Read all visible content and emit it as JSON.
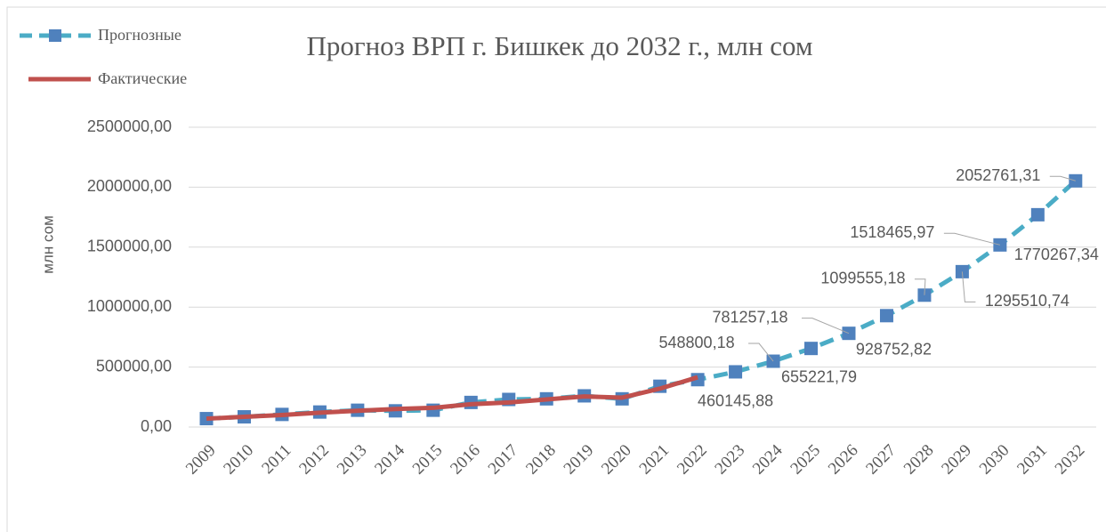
{
  "chart_data": {
    "type": "line",
    "title": "Прогноз ВРП г. Бишкек до 2032 г., млн сом",
    "y_label": "млн сом",
    "categories": [
      "2009",
      "2010",
      "2011",
      "2012",
      "2013",
      "2014",
      "2015",
      "2016",
      "2017",
      "2018",
      "2019",
      "2020",
      "2021",
      "2022",
      "2023",
      "2024",
      "2025",
      "2026",
      "2027",
      "2028",
      "2029",
      "2030",
      "2031",
      "2032"
    ],
    "series": [
      {
        "name": "Прогнозные",
        "color": "#4bacc6",
        "marker_color": "#4f81bd",
        "dashed": true,
        "values": [
          70000,
          85000,
          105000,
          125000,
          140000,
          135000,
          140000,
          205000,
          230000,
          235000,
          260000,
          235000,
          340000,
          395000,
          460145.88,
          548800.18,
          655221.79,
          781257.18,
          928752.82,
          1099555.18,
          1295510.74,
          1518465.97,
          1770267.34,
          2052761.31
        ],
        "value_labels": [
          null,
          null,
          null,
          null,
          null,
          null,
          null,
          null,
          null,
          null,
          null,
          null,
          null,
          null,
          "460145,88",
          "548800,18",
          "655221,79",
          "781257,18",
          "928752,82",
          "1099555,18",
          "1295510,74",
          "1518465,97",
          "1770267,34",
          "2052761,31"
        ]
      },
      {
        "name": "Фактические",
        "color": "#c0504d",
        "dashed": false,
        "values": [
          70000,
          85000,
          100000,
          120000,
          135000,
          150000,
          160000,
          190000,
          205000,
          230000,
          255000,
          245000,
          320000,
          415000,
          null,
          null,
          null,
          null,
          null,
          null,
          null,
          null,
          null,
          null
        ]
      }
    ],
    "ylim": [
      0,
      2500000
    ],
    "yticks": [
      {
        "value": 0,
        "label": "0,00"
      },
      {
        "value": 500000,
        "label": "500000,00"
      },
      {
        "value": 1000000,
        "label": "1000000,00"
      },
      {
        "value": 1500000,
        "label": "1500000,00"
      },
      {
        "value": 2000000,
        "label": "2000000,00"
      },
      {
        "value": 2500000,
        "label": "2500000,00"
      }
    ],
    "grid": true,
    "legend": "top-left"
  }
}
